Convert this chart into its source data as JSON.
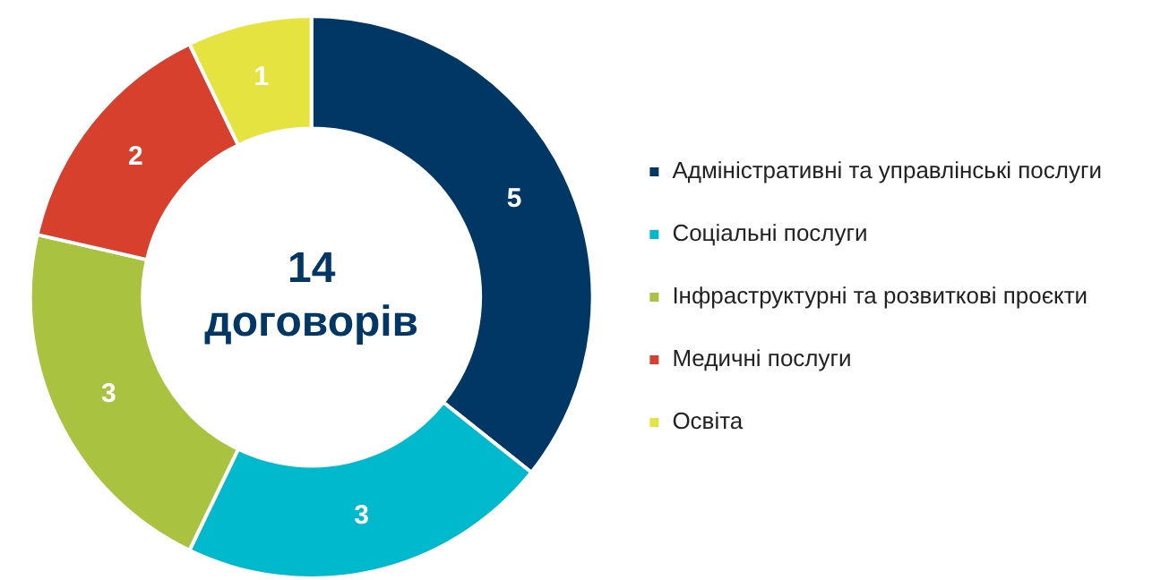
{
  "chart_data": {
    "type": "donut",
    "categories": [
      "Адміністративні та управлінські послуги",
      "Соціальні послуги",
      "Інфраструктурні та розвиткові проєкти",
      "Медичні послуги",
      "Освіта"
    ],
    "values": [
      5,
      3,
      3,
      2,
      1
    ],
    "colors": [
      "#003764",
      "#00b9cd",
      "#a9c23f",
      "#d8402e",
      "#e4e33f"
    ],
    "data_labels": true,
    "legend": "right",
    "annotations": [
      "14 договорів"
    ]
  }
}
